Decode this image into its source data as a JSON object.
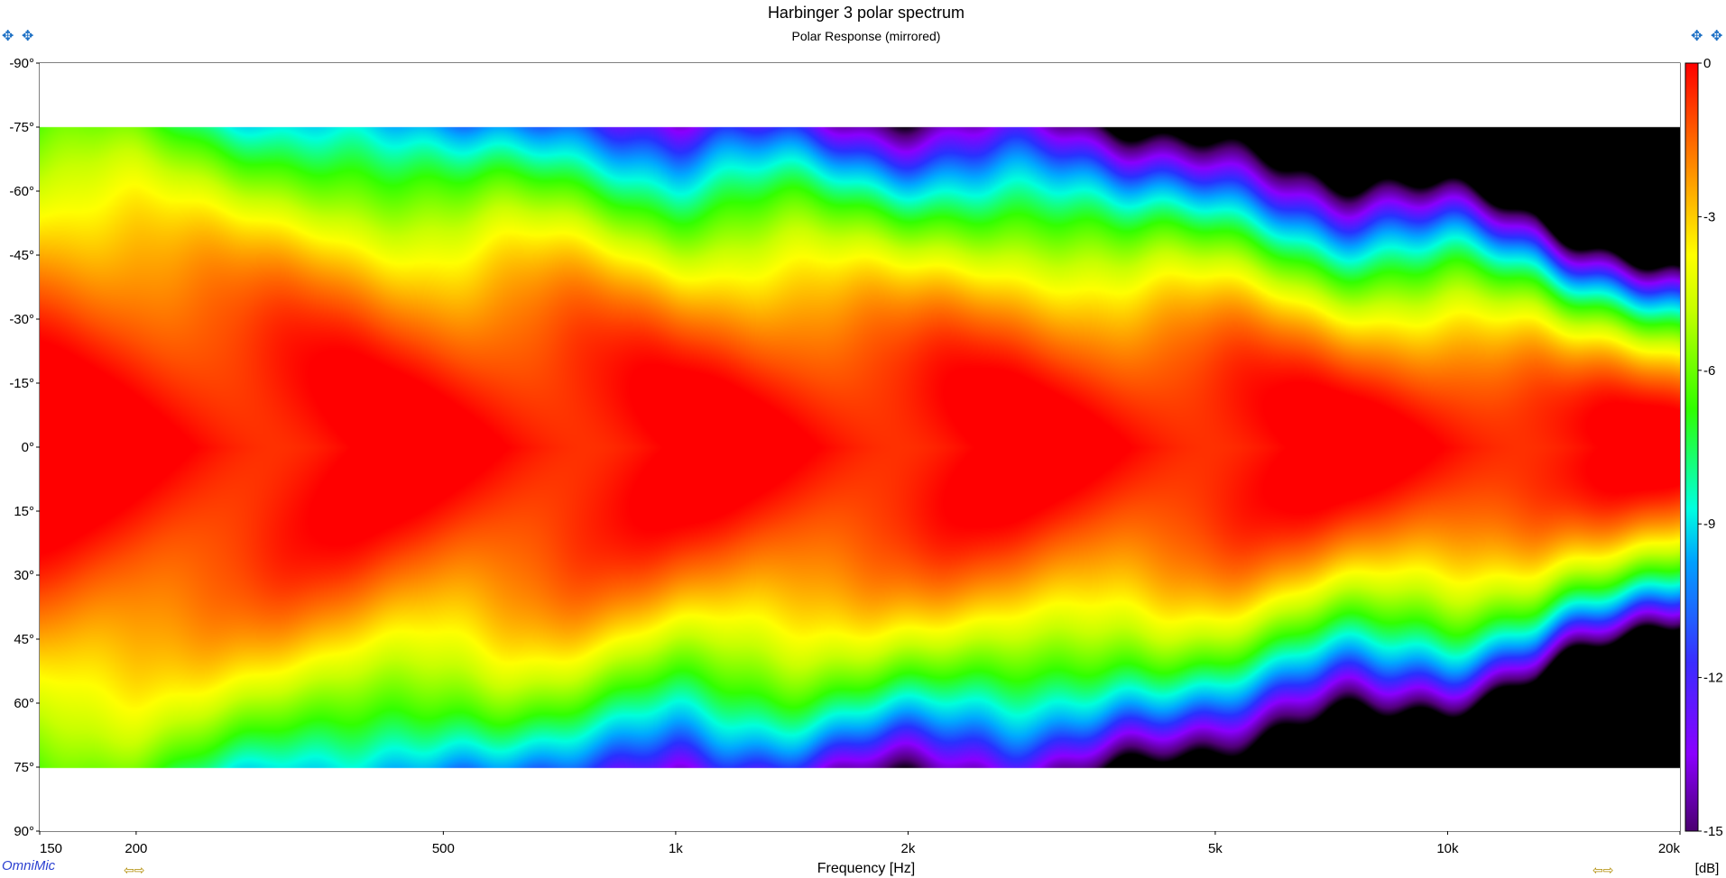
{
  "chart_data": {
    "type": "heatmap",
    "title": "Harbinger 3 polar spectrum",
    "subtitle": "Polar Response (mirrored)",
    "xlabel": "Frequency [Hz]",
    "ylabel": "",
    "x_scale": "log",
    "xlim": [
      150,
      20000
    ],
    "ylim": [
      -90,
      90
    ],
    "x_ticks": [
      {
        "value": 150,
        "label": "150"
      },
      {
        "value": 200,
        "label": "200"
      },
      {
        "value": 500,
        "label": "500"
      },
      {
        "value": 1000,
        "label": "1k"
      },
      {
        "value": 2000,
        "label": "2k"
      },
      {
        "value": 5000,
        "label": "5k"
      },
      {
        "value": 10000,
        "label": "10k"
      },
      {
        "value": 20000,
        "label": "20k"
      }
    ],
    "y_ticks": [
      {
        "value": -90,
        "label": "-90°"
      },
      {
        "value": -75,
        "label": "-75°"
      },
      {
        "value": -60,
        "label": "-60°"
      },
      {
        "value": -45,
        "label": "-45°"
      },
      {
        "value": -30,
        "label": "-30°"
      },
      {
        "value": -15,
        "label": "-15°"
      },
      {
        "value": 0,
        "label": "0°"
      },
      {
        "value": 15,
        "label": "15°"
      },
      {
        "value": 30,
        "label": "30°"
      },
      {
        "value": 45,
        "label": "45°"
      },
      {
        "value": 60,
        "label": "60°"
      },
      {
        "value": 75,
        "label": "75°"
      },
      {
        "value": 90,
        "label": "90°"
      }
    ],
    "data_angle_range": [
      -75,
      75
    ],
    "colorbar": {
      "label": "[dB]",
      "range": [
        -15,
        0
      ],
      "ticks": [
        {
          "value": 0,
          "label": "0"
        },
        {
          "value": -3,
          "label": "-3"
        },
        {
          "value": -6,
          "label": "-6"
        },
        {
          "value": -9,
          "label": "-9"
        },
        {
          "value": -12,
          "label": "-12"
        },
        {
          "value": -15,
          "label": "-15"
        }
      ],
      "colors": [
        "#000000",
        "#6a00a8",
        "#8a00ff",
        "#2a3cff",
        "#00c8ff",
        "#00ffd0",
        "#40ff00",
        "#c8ff00",
        "#ffff00",
        "#ffb000",
        "#ff6000",
        "#ff0000"
      ]
    },
    "contour_minus6dB_half_angle_deg": {
      "freq_hz": [
        150,
        200,
        300,
        500,
        800,
        1000,
        1500,
        2000,
        3000,
        5000,
        7000,
        10000,
        13000,
        16000,
        20000
      ],
      "angle": [
        75,
        73,
        65,
        60,
        58,
        55,
        54,
        53,
        52,
        47,
        42,
        39,
        36,
        31,
        26
      ]
    }
  },
  "logo_text": "OmniMic"
}
